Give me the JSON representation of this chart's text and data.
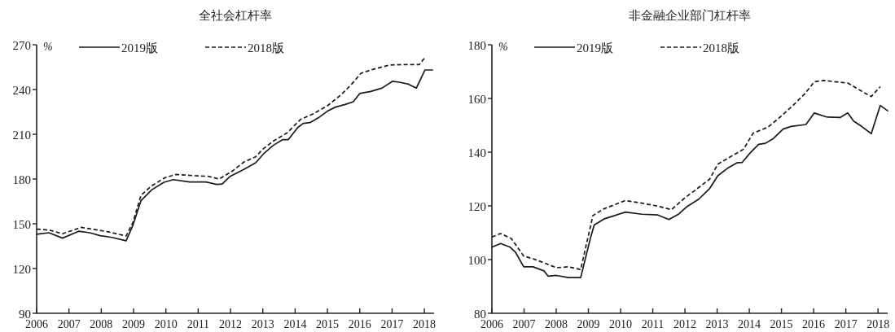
{
  "chart_data": [
    {
      "type": "line",
      "title": "全社会杠杆率",
      "ylabel": "%",
      "legend": "top left",
      "xlim": [
        2006,
        2018.3
      ],
      "xticks": [
        2006,
        2007,
        2008,
        2009,
        2010,
        2011,
        2012,
        2013,
        2014,
        2015,
        2016,
        2017,
        2018
      ],
      "ylim": [
        90,
        270
      ],
      "yticks": [
        90,
        120,
        150,
        180,
        210,
        240,
        270
      ],
      "series": [
        {
          "name": "2019版",
          "color": "#1a1a1a",
          "line_style": "solid",
          "x": [
            2006.0,
            2006.38,
            2006.8,
            2007.3,
            2007.64,
            2007.97,
            2008.3,
            2008.77,
            2008.98,
            2009.23,
            2009.56,
            2009.94,
            2010.23,
            2010.73,
            2011.24,
            2011.57,
            2011.74,
            2011.99,
            2012.41,
            2012.78,
            2013.04,
            2013.33,
            2013.62,
            2013.79,
            2014.08,
            2014.25,
            2014.46,
            2014.75,
            2015.0,
            2015.25,
            2015.55,
            2015.8,
            2016.0,
            2016.34,
            2016.68,
            2017.01,
            2017.22,
            2017.51,
            2017.75,
            2018.02,
            2018.25
          ],
          "values": [
            143.0,
            144.0,
            140.4,
            145.0,
            144.0,
            142.0,
            141.0,
            138.6,
            149.0,
            165.5,
            172.7,
            177.8,
            179.6,
            178.0,
            178.0,
            176.4,
            176.7,
            181.8,
            186.4,
            190.9,
            197.3,
            202.7,
            206.4,
            206.4,
            214.5,
            217.3,
            217.8,
            221.5,
            225.5,
            228.2,
            230.0,
            231.8,
            237.3,
            238.7,
            240.9,
            245.5,
            244.9,
            243.6,
            240.9,
            253.1,
            253.1
          ]
        },
        {
          "name": "2018版",
          "color": "#1a1a1a",
          "line_style": "dashed",
          "x": [
            2006.0,
            2006.38,
            2006.8,
            2007.38,
            2007.72,
            2008.22,
            2008.77,
            2008.98,
            2009.23,
            2009.56,
            2009.98,
            2010.31,
            2010.9,
            2011.32,
            2011.65,
            2012.07,
            2012.41,
            2012.78,
            2013.0,
            2013.33,
            2013.75,
            2014.17,
            2014.59,
            2015.0,
            2015.42,
            2015.75,
            2016.04,
            2016.42,
            2016.92,
            2017.34,
            2017.84,
            2018.02
          ],
          "values": [
            146.4,
            145.8,
            143.3,
            147.6,
            146.4,
            144.6,
            141.8,
            150.9,
            169.1,
            175.5,
            180.9,
            183.1,
            182.2,
            181.8,
            180.0,
            185.5,
            191.3,
            194.9,
            200.0,
            205.5,
            210.9,
            220.0,
            224.0,
            229.1,
            236.4,
            243.6,
            250.9,
            253.6,
            256.4,
            256.7,
            256.7,
            261.5
          ]
        }
      ]
    },
    {
      "type": "line",
      "title": "非金融企业部门杠杆率",
      "ylabel": "%",
      "legend": "top left",
      "xlim": [
        2006,
        2018.3
      ],
      "xticks": [
        2006,
        2007,
        2008,
        2009,
        2010,
        2011,
        2012,
        2013,
        2014,
        2015,
        2016,
        2017,
        2018
      ],
      "ylim": [
        80,
        180
      ],
      "yticks": [
        80,
        100,
        120,
        140,
        160,
        180
      ],
      "series": [
        {
          "name": "2019版",
          "color": "#1a1a1a",
          "line_style": "solid",
          "x": [
            2006.0,
            2006.27,
            2006.57,
            2006.73,
            2006.99,
            2007.28,
            2007.62,
            2007.75,
            2008.0,
            2008.38,
            2008.76,
            2009.06,
            2009.18,
            2009.48,
            2009.82,
            2010.15,
            2010.66,
            2011.16,
            2011.5,
            2011.8,
            2012.05,
            2012.43,
            2012.77,
            2013.02,
            2013.32,
            2013.61,
            2013.78,
            2014.04,
            2014.29,
            2014.5,
            2014.75,
            2015.05,
            2015.3,
            2015.76,
            2016.02,
            2016.4,
            2016.82,
            2017.06,
            2017.24,
            2017.49,
            2017.79,
            2018.07,
            2018.3
          ],
          "values": [
            104.6,
            106.0,
            104.6,
            102.8,
            97.3,
            97.3,
            95.8,
            93.8,
            94.1,
            93.3,
            93.3,
            107.9,
            112.9,
            115.1,
            116.4,
            117.7,
            116.9,
            116.6,
            114.9,
            116.9,
            119.6,
            122.5,
            126.5,
            131.2,
            134.0,
            136.0,
            136.2,
            139.9,
            142.9,
            143.3,
            145.1,
            148.6,
            149.6,
            150.3,
            154.6,
            153.1,
            152.9,
            154.6,
            151.6,
            149.6,
            146.9,
            157.4,
            155.4
          ]
        },
        {
          "name": "2018版",
          "color": "#1a1a1a",
          "line_style": "dashed",
          "x": [
            2006.0,
            2006.27,
            2006.6,
            2006.99,
            2007.28,
            2007.62,
            2008.0,
            2008.38,
            2008.76,
            2009.14,
            2009.48,
            2010.15,
            2010.66,
            2011.16,
            2011.58,
            2012.0,
            2012.39,
            2012.77,
            2013.02,
            2013.44,
            2013.82,
            2014.12,
            2014.58,
            2014.96,
            2015.34,
            2015.72,
            2016.02,
            2016.31,
            2017.07,
            2017.49,
            2017.79,
            2018.07
          ],
          "values": [
            108.4,
            109.7,
            107.9,
            101.3,
            100.3,
            98.8,
            97.0,
            97.3,
            96.3,
            116.4,
            118.9,
            122.0,
            121.0,
            119.9,
            118.6,
            123.0,
            126.5,
            130.0,
            135.5,
            138.5,
            141.1,
            147.1,
            149.3,
            153.1,
            157.2,
            161.7,
            166.2,
            166.7,
            165.7,
            162.7,
            160.7,
            164.4
          ]
        }
      ]
    }
  ]
}
